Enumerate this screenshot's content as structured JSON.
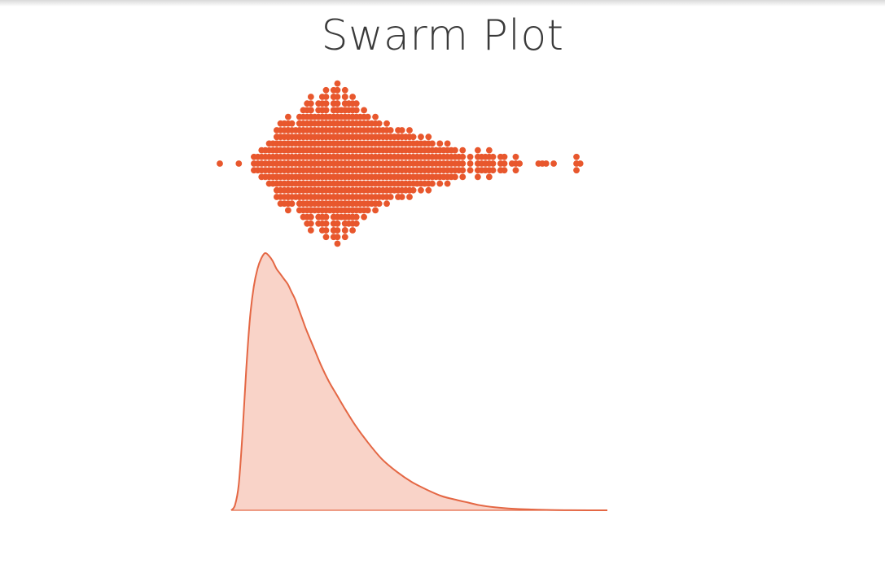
{
  "slide": {
    "title": "Swarm Plot"
  },
  "colors": {
    "dot": "#E8572D",
    "curve_stroke": "#E46744",
    "curve_fill": "#F9D3C8"
  },
  "chart_data": [
    {
      "type": "scatter",
      "variant": "swarm",
      "title": "",
      "xlabel": "",
      "ylabel": "",
      "grid": false,
      "xlim": [
        0,
        100
      ],
      "x": [
        0,
        5,
        9,
        10,
        11,
        12,
        13,
        14,
        15,
        15,
        16,
        17,
        18,
        18,
        19,
        20,
        21,
        21,
        22,
        22,
        23,
        24,
        24,
        25,
        25,
        26,
        27,
        27,
        28,
        28,
        29,
        30,
        30,
        31,
        31,
        32,
        33,
        33,
        34,
        35,
        35,
        36,
        37,
        38,
        39,
        40,
        41,
        42,
        43,
        44,
        45,
        46,
        47,
        48,
        49,
        50,
        51,
        52,
        53,
        54,
        55,
        56,
        57,
        58,
        59,
        60,
        61,
        62,
        63,
        64,
        66,
        68,
        69,
        70,
        71,
        72,
        74,
        75,
        77,
        78,
        79,
        84,
        85,
        86,
        88,
        94,
        95
      ],
      "y": [
        1,
        1,
        3,
        3,
        5,
        5,
        7,
        7,
        9,
        11,
        13,
        13,
        11,
        15,
        13,
        11,
        15,
        13,
        17,
        11,
        19,
        17,
        21,
        15,
        11,
        19,
        17,
        21,
        19,
        23,
        15,
        21,
        23,
        19,
        25,
        17,
        21,
        23,
        19,
        21,
        17,
        19,
        15,
        17,
        15,
        13,
        15,
        13,
        11,
        13,
        11,
        9,
        11,
        11,
        9,
        11,
        9,
        7,
        9,
        7,
        9,
        7,
        5,
        7,
        5,
        7,
        5,
        5,
        3,
        5,
        3,
        5,
        3,
        3,
        5,
        3,
        3,
        3,
        1,
        3,
        1,
        1,
        1,
        1,
        1,
        3,
        1
      ]
    },
    {
      "type": "area",
      "title": "",
      "xlabel": "",
      "ylabel": "",
      "grid": false,
      "xlim": [
        0,
        100
      ],
      "ylim": [
        0,
        1
      ],
      "x": [
        0,
        1,
        2,
        3,
        4,
        5,
        6,
        7,
        8,
        9,
        10,
        11,
        12,
        13,
        14,
        15,
        16,
        17,
        18,
        19,
        20,
        22,
        24,
        26,
        28,
        30,
        33,
        36,
        40,
        44,
        48,
        52,
        56,
        60,
        63,
        66,
        70,
        75,
        80,
        85,
        90,
        95,
        100
      ],
      "values": [
        0.0,
        0.02,
        0.1,
        0.3,
        0.55,
        0.75,
        0.87,
        0.94,
        0.98,
        1.0,
        0.99,
        0.97,
        0.94,
        0.92,
        0.9,
        0.88,
        0.85,
        0.82,
        0.78,
        0.74,
        0.7,
        0.63,
        0.56,
        0.5,
        0.45,
        0.4,
        0.33,
        0.27,
        0.2,
        0.15,
        0.11,
        0.08,
        0.055,
        0.04,
        0.03,
        0.02,
        0.012,
        0.006,
        0.003,
        0.001,
        0.0005,
        0.0002,
        0.0
      ]
    }
  ]
}
